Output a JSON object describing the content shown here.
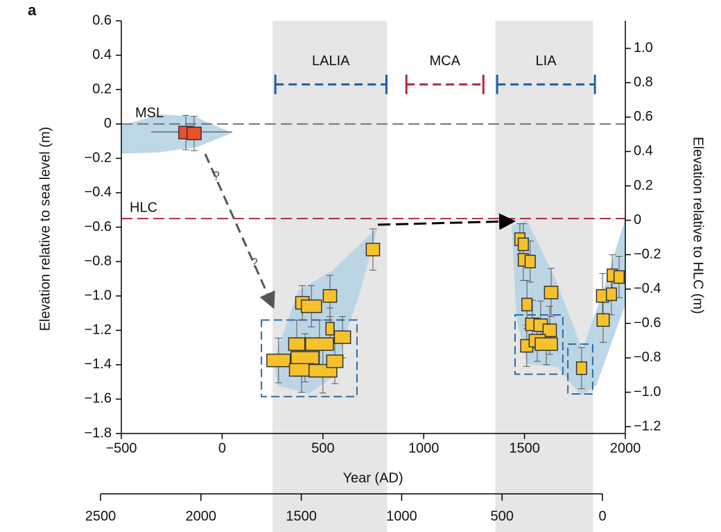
{
  "chart_data": {
    "type": "scatter",
    "panel_label": "a",
    "ylabel": "Elevation relative to sea level (m)",
    "y2label": "Elevation relative to HLC (m)",
    "xlabel": "Year (AD)",
    "xlim": [
      -500,
      2000
    ],
    "xticks": [
      {
        "value": -500,
        "label": "−500"
      },
      0,
      500,
      1000,
      1500,
      2000
    ],
    "ylim": [
      -1.8,
      0.6
    ],
    "yticks": [
      {
        "value": 0.6,
        "label": "0.6"
      },
      {
        "value": 0.4,
        "label": "0.4"
      },
      {
        "value": 0.2,
        "label": "0.2"
      },
      0,
      {
        "value": -0.2,
        "label": "−0.2"
      },
      {
        "value": -0.4,
        "label": "−0.4"
      },
      {
        "value": -0.6,
        "label": "−0.6"
      },
      {
        "value": -0.8,
        "label": "−0.8"
      },
      {
        "value": -1,
        "label": "−1.0"
      },
      {
        "value": -1.2,
        "label": "−1.2"
      },
      {
        "value": -1.4,
        "label": "−1.4"
      },
      {
        "value": -1.6,
        "label": "−1.6"
      },
      {
        "value": -1.8,
        "label": "−1.8"
      }
    ],
    "y2lim": [
      -1.24,
      1.16
    ],
    "y2ticks": [
      {
        "value": 1,
        "label": "1.0"
      },
      {
        "value": 0.8,
        "label": "0.8"
      },
      {
        "value": 0.6,
        "label": "0.6"
      },
      {
        "value": 0.4,
        "label": "0.4"
      },
      {
        "value": 0.2,
        "label": "0.2"
      },
      0,
      {
        "value": -0.2,
        "label": "−0.2"
      },
      {
        "value": -0.4,
        "label": "−0.4"
      },
      {
        "value": -0.6,
        "label": "−0.6"
      },
      {
        "value": -0.8,
        "label": "−0.8"
      },
      {
        "value": -1,
        "label": "−1.0"
      },
      {
        "value": -1.2,
        "label": "−1.2"
      }
    ],
    "x2lim": [
      2500,
      0
    ],
    "x2ticks": [
      2500,
      2000,
      1500,
      1000,
      500,
      0
    ],
    "bands": [
      [
        250,
        818
      ],
      [
        1355,
        1840
      ]
    ],
    "periods": [
      {
        "label": "LALIA",
        "x0": 264,
        "x1": 815,
        "y": 0.23,
        "color": "#1f5f9e"
      },
      {
        "label": "MCA",
        "x0": 914,
        "x1": 1296,
        "y": 0.23,
        "color": "#b02a3a"
      },
      {
        "label": "LIA",
        "x0": 1364,
        "x1": 1849,
        "y": 0.23,
        "color": "#1f5f9e"
      }
    ],
    "lines": [
      {
        "label": "MSL",
        "y": 0,
        "color": "#6b7480"
      },
      {
        "label": "HLC",
        "y": -0.55,
        "color": "#b02a3a"
      }
    ],
    "annotations": [
      "?",
      "?"
    ],
    "envelopes": [
      {
        "x": [
          -500,
          -311,
          -139,
          50,
          -122,
          -311,
          -500
        ],
        "y": [
          -0.01,
          0.056,
          0.044,
          -0.052,
          -0.133,
          -0.165,
          -0.173
        ]
      },
      {
        "x": [
          256,
          377,
          549,
          772,
          686,
          618,
          549,
          428,
          274
        ],
        "y": [
          -1.375,
          -0.97,
          -0.85,
          -0.6,
          -0.97,
          -1.21,
          -1.475,
          -1.57,
          -1.52
        ]
      },
      {
        "x": [
          1436,
          1512,
          1649,
          1787,
          1890,
          2000,
          2000,
          1856,
          1780,
          1666,
          1512,
          1460
        ],
        "y": [
          -0.59,
          -0.56,
          -0.89,
          -1.31,
          -0.97,
          -0.55,
          -1.05,
          -1.52,
          -1.58,
          -1.415,
          -1.395,
          -1.13
        ]
      }
    ],
    "boxes": [
      {
        "x0": 195,
        "x1": 669,
        "y0": -1.585,
        "y1": -1.14
      },
      {
        "x0": 1453,
        "x1": 1690,
        "y0": -1.455,
        "y1": -1.11
      },
      {
        "x0": 1715,
        "x1": 1838,
        "y0": -1.57,
        "y1": -1.28
      }
    ],
    "msl_points": {
      "color": "#e8502f",
      "x": [
        -180,
        -139
      ],
      "y": [
        -0.05,
        -0.055
      ],
      "xerr": [
        35,
        35
      ],
      "yerr": [
        0.1,
        0.1
      ]
    },
    "points": {
      "color": "#f6c22b",
      "x": [
        748,
        398,
        443,
        535,
        535,
        597,
        280,
        370,
        483,
        411,
        394,
        500,
        559,
        1477,
        1494,
        1494,
        1528,
        1512,
        1632,
        1539,
        1580,
        1625,
        1511,
        1563,
        1608,
        1783,
        1890,
        1887,
        1931,
        1935,
        1969
      ],
      "y": [
        -0.73,
        -1.04,
        -1.06,
        -1.0,
        -1.19,
        -1.24,
        -1.375,
        -1.28,
        -1.28,
        -1.36,
        -1.43,
        -1.435,
        -1.38,
        -0.67,
        -0.7,
        -0.79,
        -0.8,
        -1.05,
        -0.98,
        -1.165,
        -1.17,
        -1.2,
        -1.29,
        -1.26,
        -1.28,
        -1.42,
        -1.14,
        -1.0,
        -0.99,
        -0.88,
        -0.89
      ],
      "xerr": [
        33,
        33,
        50,
        33,
        20,
        40,
        58,
        40,
        69,
        69,
        60,
        69,
        40,
        25,
        25,
        25,
        25,
        25,
        33,
        33,
        33,
        33,
        30,
        40,
        55,
        25,
        30,
        30,
        25,
        25,
        25
      ],
      "yerr": [
        0.12,
        0.1,
        0.12,
        0.12,
        0.12,
        0.12,
        0.13,
        0.14,
        0.14,
        0.14,
        0.13,
        0.13,
        0.13,
        0.09,
        0.12,
        0.12,
        0.12,
        0.14,
        0.14,
        0.14,
        0.14,
        0.14,
        0.12,
        0.12,
        0.12,
        0.12,
        0.13,
        0.13,
        0.12,
        0.12,
        0.12
      ]
    }
  }
}
